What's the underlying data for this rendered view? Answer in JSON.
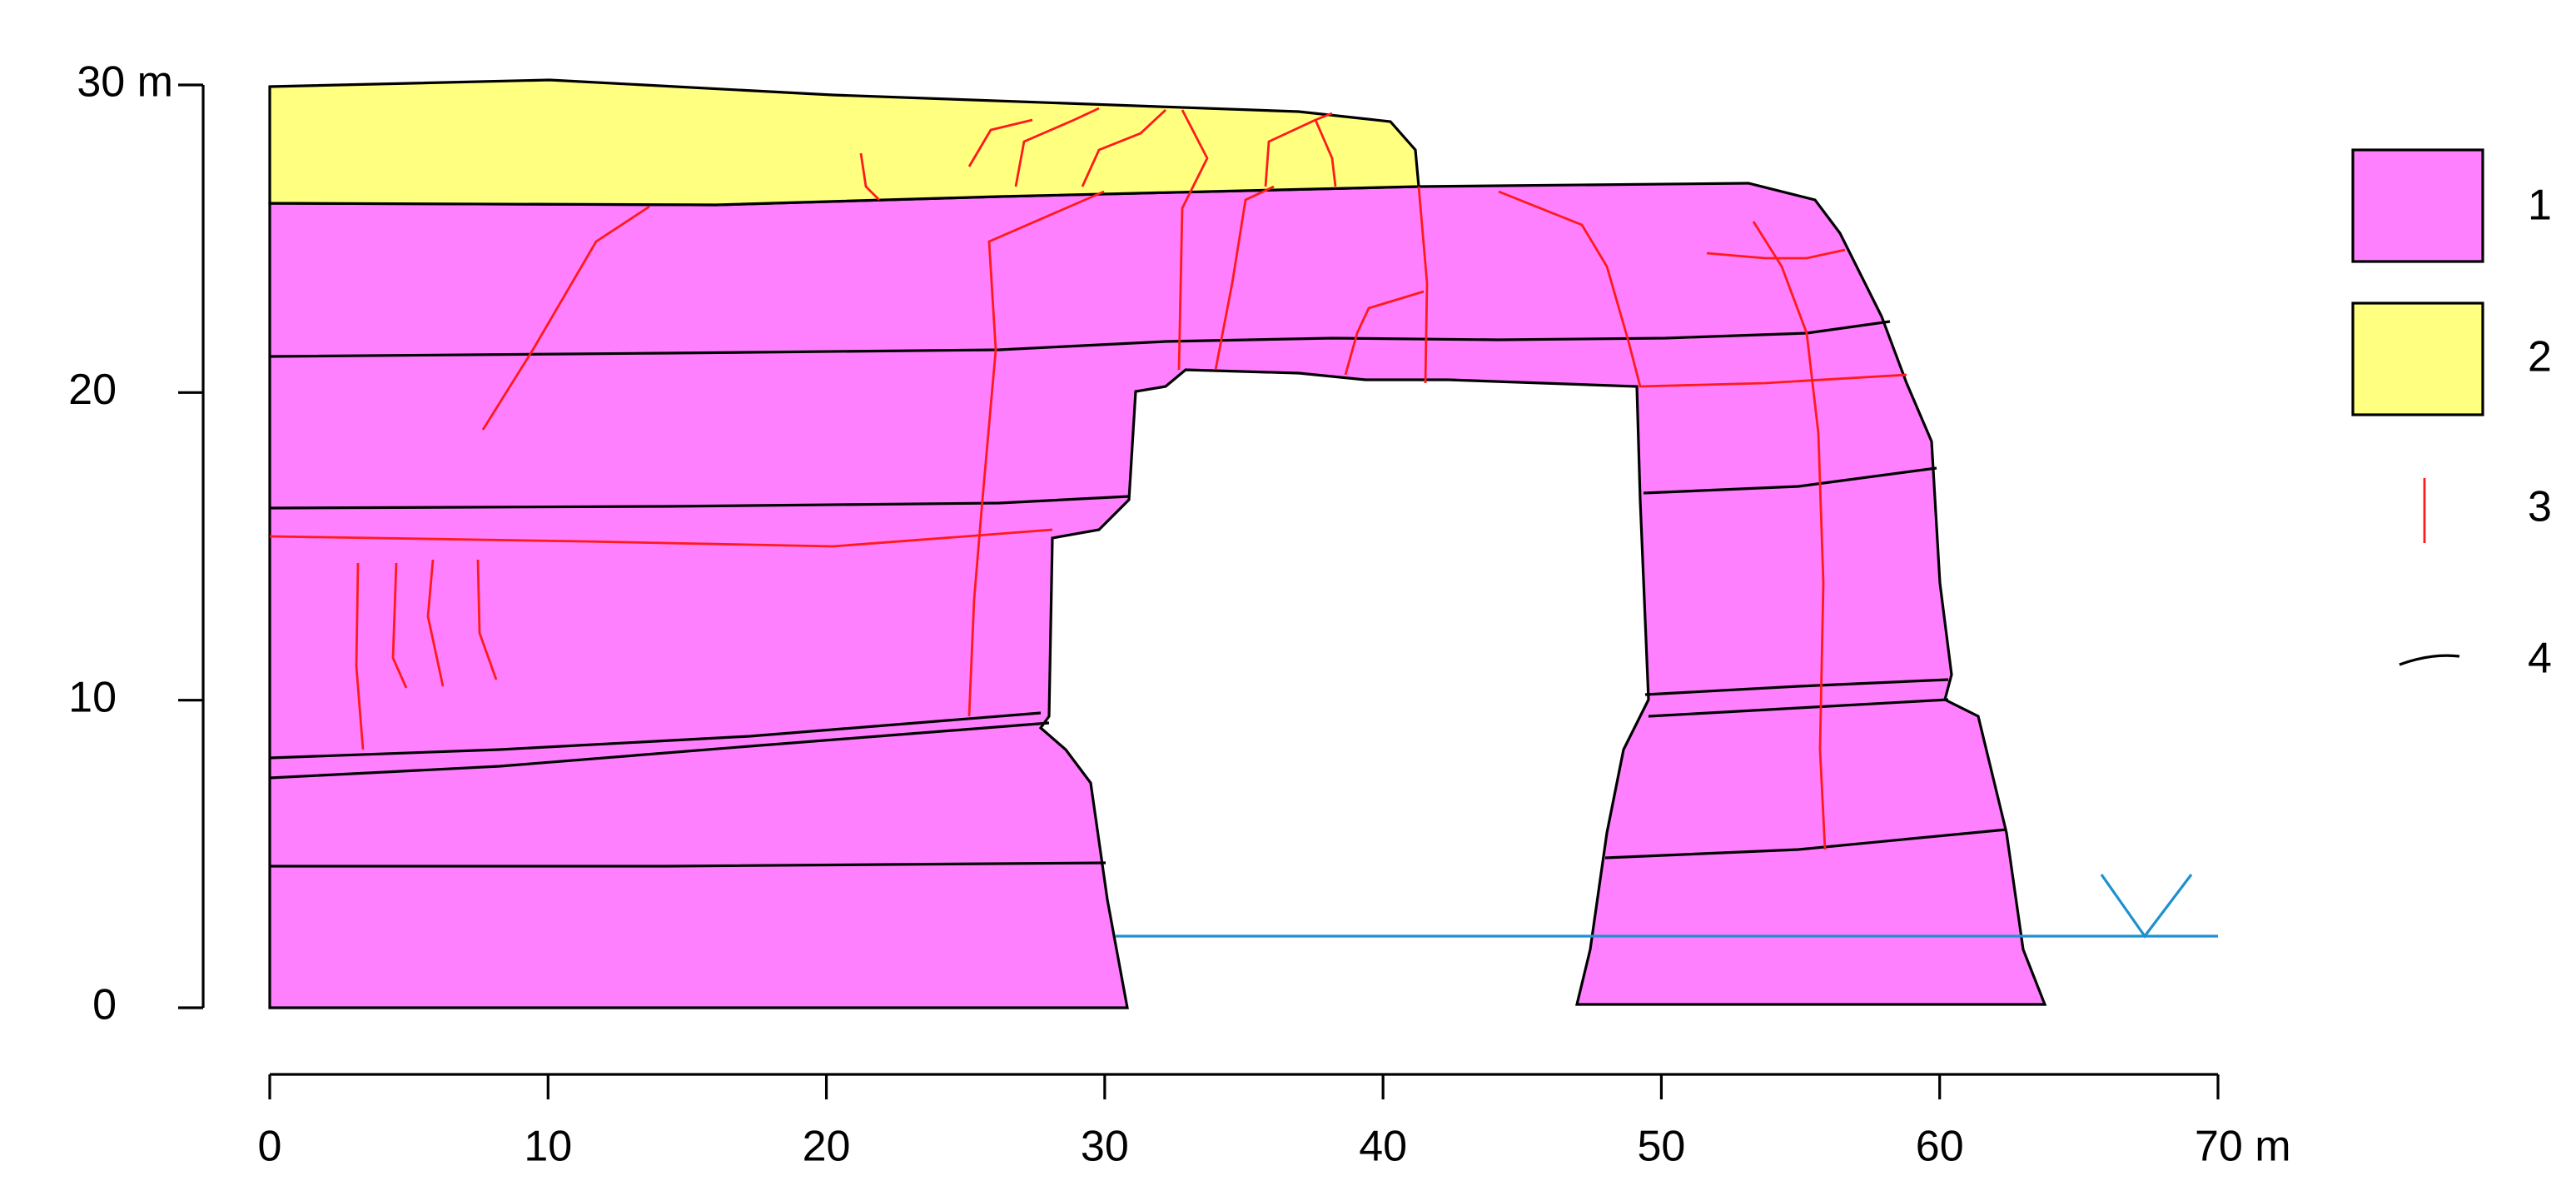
{
  "axes": {
    "x": {
      "lim": [
        0,
        70
      ],
      "ticks": [
        0,
        10,
        20,
        30,
        40,
        50,
        60,
        {
          "value": 70,
          "label": "70 m"
        }
      ]
    },
    "y": {
      "lim": [
        0,
        30
      ],
      "ticks": [
        0,
        10,
        20,
        {
          "value": 30,
          "label": "30 m"
        }
      ]
    }
  },
  "legend": {
    "items": [
      "1",
      "2",
      "3",
      "4"
    ]
  }
}
